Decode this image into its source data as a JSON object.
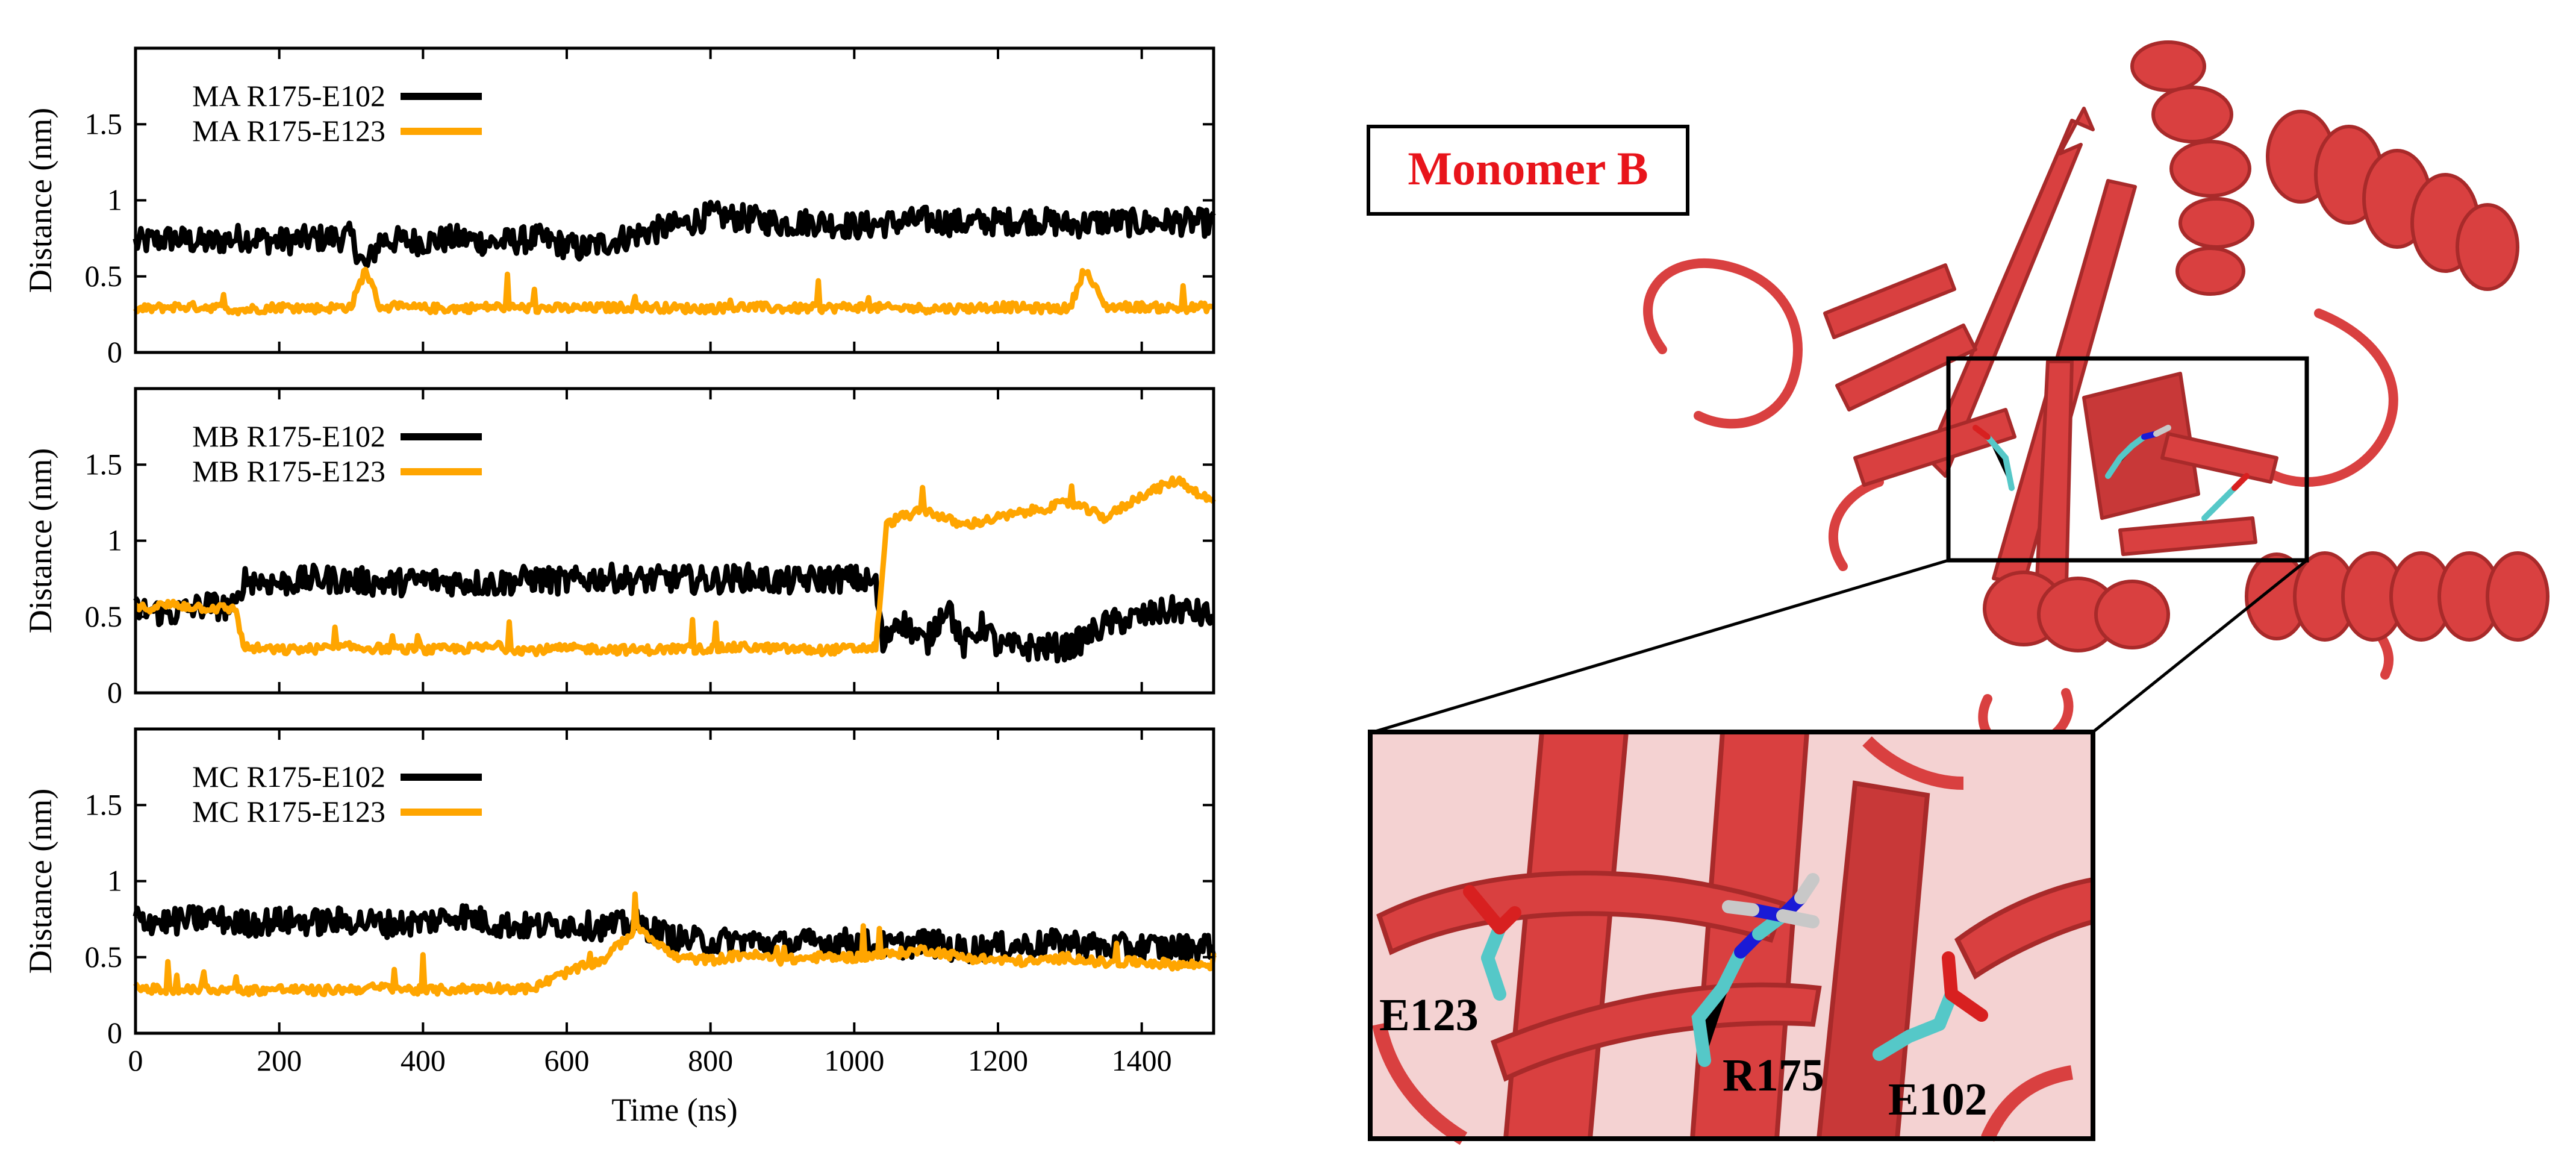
{
  "colors": {
    "series_black": "#000000",
    "series_orange": "#ffa500",
    "protein": "#d94040",
    "protein_dark": "#a82a2a",
    "carbon": "#55c8c8",
    "nitrogen": "#1a1ad6",
    "oxygen": "#d82020",
    "hydrogen": "#c8c8c8",
    "monomer_label": "#e8141b"
  },
  "structure_panel": {
    "monomer_label": "Monomer B",
    "residues": [
      "E123",
      "R175",
      "E102"
    ]
  },
  "chart_data": [
    {
      "type": "line",
      "xlabel": "",
      "ylabel": "Distance (nm)",
      "xlim": [
        0,
        1500
      ],
      "ylim": [
        0,
        2.0
      ],
      "xticks": [
        0,
        200,
        400,
        600,
        800,
        1000,
        1200,
        1400
      ],
      "yticks": [
        0,
        0.5,
        1,
        1.5
      ],
      "ytick_labels": [
        "0",
        "0.5",
        "1",
        "1.5"
      ],
      "legend_position": "top-left",
      "series": [
        {
          "name": "MA R175-E102",
          "color": "#000000",
          "x": [
            0,
            50,
            100,
            150,
            200,
            250,
            300,
            320,
            340,
            400,
            450,
            500,
            560,
            620,
            700,
            760,
            800,
            850,
            900,
            950,
            1000,
            1050,
            1100,
            1150,
            1200,
            1250,
            1300,
            1350,
            1400,
            1450,
            1500
          ],
          "y": [
            0.72,
            0.75,
            0.72,
            0.76,
            0.73,
            0.75,
            0.76,
            0.55,
            0.74,
            0.73,
            0.75,
            0.72,
            0.75,
            0.68,
            0.78,
            0.84,
            0.9,
            0.88,
            0.85,
            0.86,
            0.83,
            0.85,
            0.87,
            0.85,
            0.86,
            0.87,
            0.84,
            0.86,
            0.85,
            0.86,
            0.85
          ]
        },
        {
          "name": "MA R175-E123",
          "color": "#ffa500",
          "x": [
            0,
            50,
            100,
            150,
            200,
            250,
            300,
            320,
            340,
            400,
            450,
            500,
            560,
            620,
            700,
            760,
            800,
            850,
            900,
            950,
            1000,
            1050,
            1100,
            1150,
            1200,
            1250,
            1300,
            1320,
            1350,
            1400,
            1450,
            1500
          ],
          "y": [
            0.28,
            0.3,
            0.3,
            0.28,
            0.3,
            0.29,
            0.3,
            0.55,
            0.3,
            0.29,
            0.29,
            0.3,
            0.29,
            0.29,
            0.3,
            0.29,
            0.29,
            0.3,
            0.29,
            0.29,
            0.3,
            0.29,
            0.29,
            0.29,
            0.3,
            0.29,
            0.29,
            0.55,
            0.3,
            0.3,
            0.29,
            0.3
          ]
        }
      ]
    },
    {
      "type": "line",
      "xlabel": "",
      "ylabel": "Distance (nm)",
      "xlim": [
        0,
        1500
      ],
      "ylim": [
        0,
        2.0
      ],
      "xticks": [
        0,
        200,
        400,
        600,
        800,
        1000,
        1200,
        1400
      ],
      "yticks": [
        0,
        0.5,
        1,
        1.5
      ],
      "ytick_labels": [
        "0",
        "0.5",
        "1",
        "1.5"
      ],
      "legend_position": "top-left",
      "series": [
        {
          "name": "MB R175-E102",
          "color": "#000000",
          "x": [
            0,
            50,
            100,
            140,
            150,
            200,
            250,
            300,
            350,
            400,
            450,
            500,
            550,
            600,
            650,
            700,
            750,
            800,
            850,
            900,
            950,
            1000,
            1030,
            1040,
            1060,
            1100,
            1130,
            1150,
            1180,
            1200,
            1250,
            1300,
            1350,
            1400,
            1450,
            1500
          ],
          "y": [
            0.55,
            0.52,
            0.58,
            0.55,
            0.75,
            0.72,
            0.75,
            0.74,
            0.72,
            0.74,
            0.73,
            0.72,
            0.75,
            0.73,
            0.76,
            0.74,
            0.75,
            0.74,
            0.76,
            0.73,
            0.75,
            0.75,
            0.72,
            0.3,
            0.5,
            0.32,
            0.6,
            0.3,
            0.45,
            0.3,
            0.3,
            0.3,
            0.45,
            0.5,
            0.55,
            0.5
          ]
        },
        {
          "name": "MB R175-E123",
          "color": "#ffa500",
          "x": [
            0,
            50,
            100,
            140,
            150,
            200,
            250,
            300,
            350,
            400,
            450,
            500,
            550,
            600,
            650,
            700,
            750,
            800,
            850,
            900,
            950,
            1000,
            1030,
            1045,
            1060,
            1100,
            1150,
            1200,
            1250,
            1300,
            1350,
            1400,
            1450,
            1500
          ],
          "y": [
            0.55,
            0.58,
            0.56,
            0.55,
            0.3,
            0.28,
            0.29,
            0.3,
            0.29,
            0.28,
            0.29,
            0.3,
            0.28,
            0.29,
            0.29,
            0.28,
            0.29,
            0.29,
            0.3,
            0.29,
            0.28,
            0.29,
            0.3,
            1.1,
            1.15,
            1.2,
            1.1,
            1.15,
            1.2,
            1.25,
            1.15,
            1.3,
            1.4,
            1.25
          ]
        }
      ]
    },
    {
      "type": "line",
      "xlabel": "Time (ns)",
      "ylabel": "Distance (nm)",
      "xlim": [
        0,
        1500
      ],
      "ylim": [
        0,
        2.0
      ],
      "xticks": [
        0,
        200,
        400,
        600,
        800,
        1000,
        1200,
        1400
      ],
      "xtick_labels": [
        "0",
        "200",
        "400",
        "600",
        "800",
        "1000",
        "1200",
        "1400"
      ],
      "yticks": [
        0,
        0.5,
        1,
        1.5
      ],
      "ytick_labels": [
        "0",
        "0.5",
        "1",
        "1.5"
      ],
      "legend_position": "top-left",
      "series": [
        {
          "name": "MC R175-E102",
          "color": "#000000",
          "x": [
            0,
            50,
            100,
            150,
            200,
            250,
            300,
            350,
            400,
            450,
            500,
            550,
            600,
            650,
            700,
            750,
            800,
            850,
            900,
            950,
            1000,
            1050,
            1100,
            1150,
            1200,
            1250,
            1300,
            1350,
            1400,
            1450,
            1500
          ],
          "y": [
            0.75,
            0.73,
            0.76,
            0.72,
            0.74,
            0.73,
            0.74,
            0.72,
            0.73,
            0.78,
            0.72,
            0.7,
            0.72,
            0.7,
            0.72,
            0.62,
            0.6,
            0.61,
            0.58,
            0.6,
            0.6,
            0.57,
            0.6,
            0.55,
            0.57,
            0.58,
            0.6,
            0.56,
            0.57,
            0.56,
            0.58
          ]
        },
        {
          "name": "MC R175-E123",
          "color": "#ffa500",
          "x": [
            0,
            50,
            100,
            150,
            200,
            250,
            300,
            350,
            400,
            450,
            500,
            550,
            600,
            650,
            700,
            750,
            800,
            850,
            900,
            950,
            1000,
            1050,
            1100,
            1150,
            1200,
            1250,
            1300,
            1350,
            1400,
            1450,
            1500
          ],
          "y": [
            0.3,
            0.28,
            0.29,
            0.28,
            0.29,
            0.28,
            0.29,
            0.3,
            0.28,
            0.29,
            0.3,
            0.29,
            0.4,
            0.48,
            0.7,
            0.5,
            0.48,
            0.52,
            0.48,
            0.5,
            0.5,
            0.52,
            0.55,
            0.5,
            0.48,
            0.47,
            0.5,
            0.46,
            0.47,
            0.45,
            0.45
          ]
        }
      ]
    }
  ]
}
